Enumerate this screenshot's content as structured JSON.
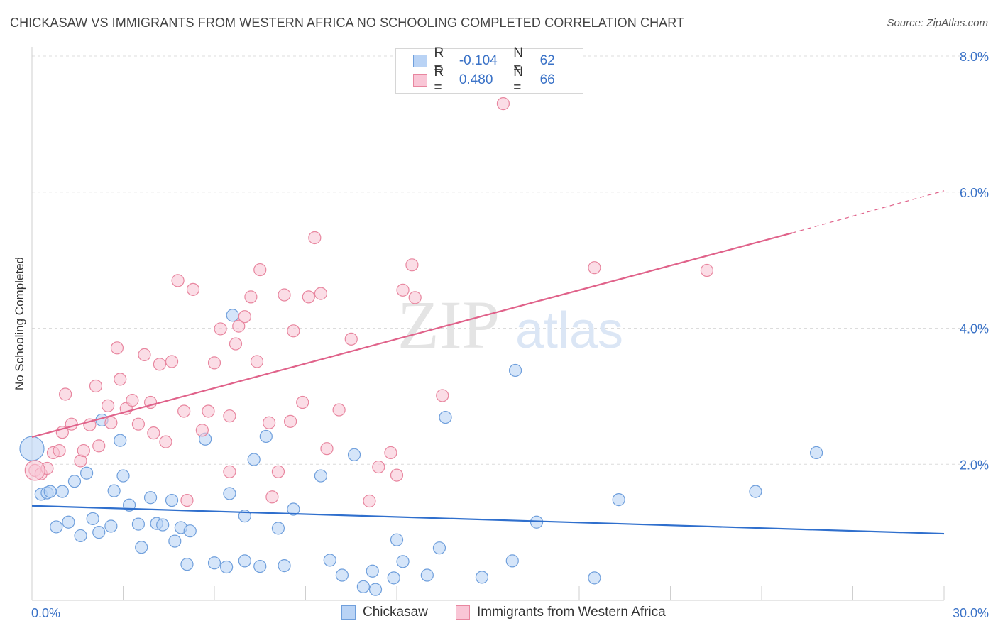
{
  "title": "CHICKASAW VS IMMIGRANTS FROM WESTERN AFRICA NO SCHOOLING COMPLETED CORRELATION CHART",
  "source": "Source: ZipAtlas.com",
  "watermark": {
    "zip": "ZIP",
    "atlas": "atlas"
  },
  "legend": {
    "rows": [
      {
        "r_label": "R =",
        "r_value": "-0.104",
        "n_label": "N =",
        "n_value": "62",
        "fill": "#b9d3f5",
        "stroke": "#6f9fdc"
      },
      {
        "r_label": "R =",
        "r_value": "0.480",
        "n_label": "N =",
        "n_value": "66",
        "fill": "#f9c6d6",
        "stroke": "#e8869f"
      }
    ]
  },
  "bottom_legend": [
    {
      "label": "Chickasaw",
      "fill": "#b9d3f5",
      "stroke": "#6f9fdc"
    },
    {
      "label": "Immigrants from Western Africa",
      "fill": "#f9c6d6",
      "stroke": "#e8869f"
    }
  ],
  "chart_data": {
    "type": "scatter",
    "title": "CHICKASAW VS IMMIGRANTS FROM WESTERN AFRICA NO SCHOOLING COMPLETED CORRELATION CHART",
    "xlabel": "",
    "ylabel": "No Schooling Completed",
    "xlim": [
      0,
      30
    ],
    "ylim": [
      0,
      8
    ],
    "x_tick_labels": [
      "0.0%",
      "30.0%"
    ],
    "y_ticks": [
      2,
      4,
      6,
      8
    ],
    "y_tick_labels": [
      "2.0%",
      "4.0%",
      "6.0%",
      "8.0%"
    ],
    "grid": true,
    "legend_position": "top-center",
    "series": [
      {
        "name": "Chickasaw",
        "color": "#6f9fdc",
        "fill": "#b9d3f5",
        "trend": {
          "x": [
            0,
            30
          ],
          "y": [
            1.39,
            0.98
          ],
          "color": "#2f6fcd"
        },
        "points": [
          [
            0.0,
            2.23
          ],
          [
            0.3,
            1.56
          ],
          [
            0.5,
            1.58
          ],
          [
            0.6,
            1.6
          ],
          [
            0.8,
            1.08
          ],
          [
            1.0,
            1.6
          ],
          [
            1.2,
            1.15
          ],
          [
            1.4,
            1.75
          ],
          [
            1.6,
            0.95
          ],
          [
            1.8,
            1.87
          ],
          [
            2.0,
            1.2
          ],
          [
            2.2,
            1.0
          ],
          [
            2.3,
            2.65
          ],
          [
            2.6,
            1.09
          ],
          [
            2.7,
            1.61
          ],
          [
            2.9,
            2.35
          ],
          [
            3.0,
            1.83
          ],
          [
            3.2,
            1.4
          ],
          [
            3.5,
            1.12
          ],
          [
            3.6,
            0.78
          ],
          [
            3.9,
            1.51
          ],
          [
            4.1,
            1.13
          ],
          [
            4.3,
            1.11
          ],
          [
            4.6,
            1.47
          ],
          [
            4.7,
            0.87
          ],
          [
            4.9,
            1.07
          ],
          [
            5.1,
            0.53
          ],
          [
            5.2,
            1.02
          ],
          [
            5.7,
            2.37
          ],
          [
            6.0,
            0.55
          ],
          [
            6.4,
            0.49
          ],
          [
            6.5,
            1.57
          ],
          [
            6.6,
            4.19
          ],
          [
            7.0,
            1.24
          ],
          [
            7.0,
            0.58
          ],
          [
            7.3,
            2.07
          ],
          [
            7.5,
            0.5
          ],
          [
            7.7,
            2.41
          ],
          [
            8.1,
            1.06
          ],
          [
            8.3,
            0.51
          ],
          [
            8.6,
            1.34
          ],
          [
            9.5,
            1.83
          ],
          [
            9.8,
            0.59
          ],
          [
            10.2,
            0.37
          ],
          [
            10.6,
            2.14
          ],
          [
            10.9,
            0.2
          ],
          [
            11.2,
            0.43
          ],
          [
            11.3,
            0.16
          ],
          [
            11.9,
            0.33
          ],
          [
            12.0,
            0.89
          ],
          [
            12.2,
            0.57
          ],
          [
            13.0,
            0.37
          ],
          [
            13.4,
            0.77
          ],
          [
            13.6,
            2.69
          ],
          [
            14.8,
            0.34
          ],
          [
            15.8,
            0.58
          ],
          [
            15.9,
            3.38
          ],
          [
            16.6,
            1.15
          ],
          [
            18.5,
            0.33
          ],
          [
            19.3,
            1.48
          ],
          [
            23.8,
            1.6
          ],
          [
            25.8,
            2.17
          ]
        ]
      },
      {
        "name": "Immigrants from Western Africa",
        "color": "#e8869f",
        "fill": "#f9c6d6",
        "trend": {
          "x": [
            0,
            25
          ],
          "y": [
            2.4,
            5.4
          ],
          "dash_to": [
            30,
            6.02
          ],
          "color": "#e0628a"
        },
        "points": [
          [
            0.1,
            1.91
          ],
          [
            0.3,
            1.86
          ],
          [
            0.5,
            1.94
          ],
          [
            0.7,
            2.17
          ],
          [
            0.9,
            2.2
          ],
          [
            1.0,
            2.47
          ],
          [
            1.1,
            3.03
          ],
          [
            1.3,
            2.59
          ],
          [
            1.6,
            2.05
          ],
          [
            1.7,
            2.2
          ],
          [
            1.9,
            2.58
          ],
          [
            2.1,
            3.15
          ],
          [
            2.2,
            2.27
          ],
          [
            2.5,
            2.86
          ],
          [
            2.6,
            2.61
          ],
          [
            2.8,
            3.71
          ],
          [
            2.9,
            3.25
          ],
          [
            3.1,
            2.82
          ],
          [
            3.3,
            2.94
          ],
          [
            3.5,
            2.59
          ],
          [
            3.7,
            3.61
          ],
          [
            3.9,
            2.91
          ],
          [
            4.0,
            2.46
          ],
          [
            4.2,
            3.47
          ],
          [
            4.4,
            2.33
          ],
          [
            4.6,
            3.51
          ],
          [
            4.8,
            4.7
          ],
          [
            5.0,
            2.78
          ],
          [
            5.1,
            1.47
          ],
          [
            5.3,
            4.57
          ],
          [
            5.6,
            2.5
          ],
          [
            5.8,
            2.78
          ],
          [
            6.0,
            3.49
          ],
          [
            6.2,
            3.99
          ],
          [
            6.5,
            2.71
          ],
          [
            6.5,
            1.89
          ],
          [
            6.7,
            3.77
          ],
          [
            6.8,
            4.03
          ],
          [
            7.0,
            4.17
          ],
          [
            7.2,
            4.46
          ],
          [
            7.4,
            3.51
          ],
          [
            7.5,
            4.86
          ],
          [
            7.8,
            2.61
          ],
          [
            7.9,
            1.52
          ],
          [
            8.1,
            1.89
          ],
          [
            8.3,
            4.49
          ],
          [
            8.5,
            2.63
          ],
          [
            8.6,
            3.96
          ],
          [
            8.9,
            2.91
          ],
          [
            9.1,
            4.46
          ],
          [
            9.3,
            5.33
          ],
          [
            9.5,
            4.51
          ],
          [
            9.7,
            2.23
          ],
          [
            10.1,
            2.8
          ],
          [
            10.5,
            3.84
          ],
          [
            11.1,
            1.46
          ],
          [
            11.4,
            1.96
          ],
          [
            11.8,
            2.17
          ],
          [
            12.0,
            1.84
          ],
          [
            12.2,
            4.56
          ],
          [
            12.5,
            4.93
          ],
          [
            12.6,
            4.45
          ],
          [
            13.5,
            3.01
          ],
          [
            15.5,
            7.3
          ],
          [
            18.5,
            4.89
          ],
          [
            22.2,
            4.85
          ]
        ]
      }
    ]
  }
}
